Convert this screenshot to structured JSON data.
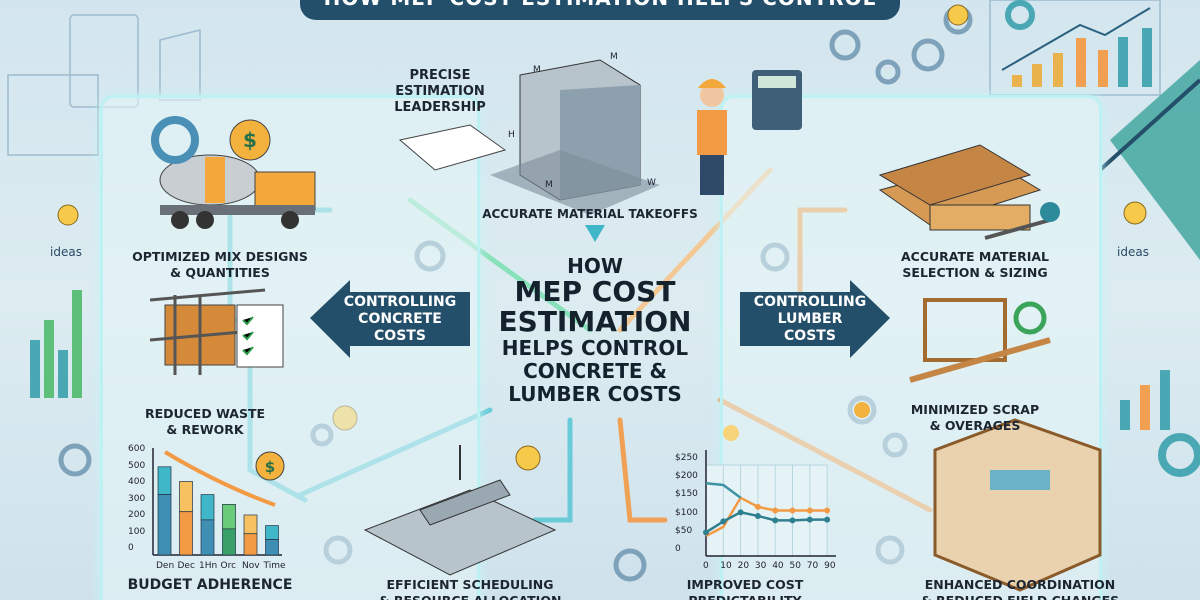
{
  "banner": {
    "title": "HOW MEP COST ESTIMATION HELPS CONTROL"
  },
  "center": {
    "line1": "HOW",
    "line2": "MEP COST",
    "line3": "ESTIMATION",
    "line4": "HELPS CONTROL",
    "line5": "CONCRETE &",
    "line6": "LUMBER COSTS"
  },
  "arrows": {
    "left": "CONTROLLING\nCONCRETE\nCOSTS",
    "right": "CONTROLLING\nLUMBER\nCOSTS"
  },
  "labels": {
    "precise": "PRECISE\nESTIMATION\nLEADERSHIP",
    "takeoffs": "ACCURATE MATERIAL TAKEOFFS",
    "mix": "OPTIMIZED MIX DESIGNS\n& QUANTITIES",
    "waste": "REDUCED WASTE\n& REWORK",
    "budget": "BUDGET ADHERENCE",
    "scheduling": "EFFICIENT SCHEDULING\n& RESOURCE ALLOCATION",
    "predictability": "IMPROVED COST\nPREDICTABILITY",
    "coordination": "ENHANCED COORDINATION\n& REDUCED FIELD CHANGES",
    "selection": "ACCURATE MATERIAL\nSELECTION & SIZING",
    "scrap": "MINIMIZED SCRAP\n& OVERAGES"
  },
  "side": {
    "ideas_left": "ideas",
    "ideas_right": "ideas"
  },
  "dims": {
    "m1": "M",
    "m2": "M",
    "h": "H",
    "m3": "M",
    "w": "W"
  },
  "colors": {
    "navy": "#244f6a",
    "teal": "#3fb7c9",
    "orange": "#f39a45",
    "green": "#5cc07a"
  },
  "chart_data": [
    {
      "type": "bar",
      "categories": [
        "Den",
        "Dec",
        "1Hn",
        "Orc",
        "Nov",
        "Time"
      ],
      "series": [
        {
          "values": [
            370,
            265,
            215,
            160,
            130,
            95
          ]
        },
        {
          "values": [
            540,
            450,
            370,
            310,
            245,
            180
          ]
        }
      ],
      "yticks": [
        "600",
        "500",
        "400",
        "300",
        "200",
        "100",
        "0"
      ],
      "ylim": [
        0,
        600
      ]
    },
    {
      "type": "line",
      "categories": [
        "0",
        "10",
        "20",
        "30",
        "40",
        "50",
        "70",
        "90"
      ],
      "yticks": [
        "$250",
        "$200",
        "$150",
        "$100",
        "$50",
        "0"
      ],
      "ylim": [
        0,
        250
      ],
      "series": [
        {
          "color": "#f39a45",
          "values": [
            55,
            80,
            160,
            135,
            125,
            125,
            125,
            125
          ]
        },
        {
          "color": "#2e7f8f",
          "values": [
            65,
            95,
            120,
            110,
            98,
            98,
            100,
            100
          ]
        },
        {
          "color": "#3d93a3",
          "values": [
            200,
            195,
            160,
            null,
            null,
            null,
            null,
            null
          ]
        }
      ]
    }
  ]
}
